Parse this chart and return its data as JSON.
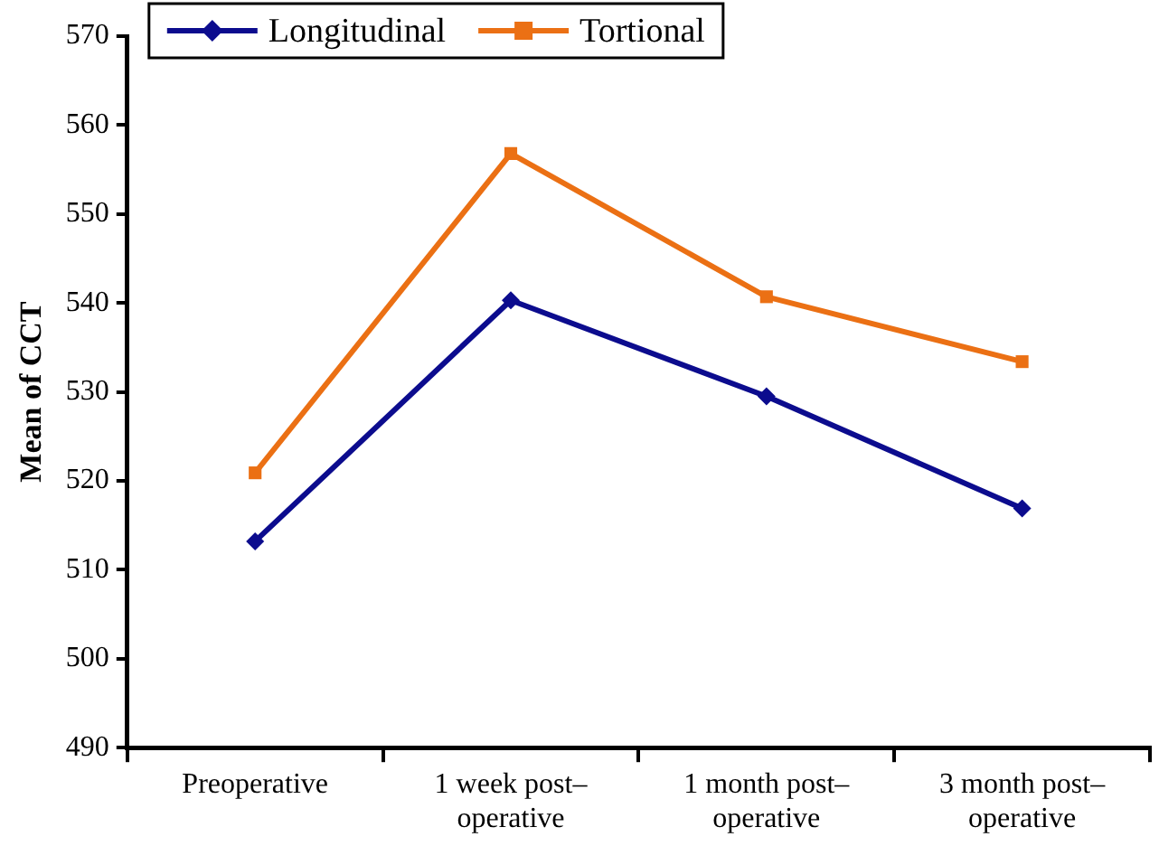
{
  "chart_data": {
    "type": "line",
    "ylabel": "Mean of CCT",
    "categories": [
      "Preoperative",
      "1 week post–operative",
      "1 month post–operative",
      "3 month post–operative"
    ],
    "series": [
      {
        "name": "Longitudinal",
        "color": "#0c0c8e",
        "marker": "diamond",
        "values": [
          513.2,
          540.3,
          529.5,
          516.9
        ]
      },
      {
        "name": "Tortional",
        "color": "#eb7014",
        "marker": "square",
        "values": [
          520.9,
          556.8,
          540.7,
          533.4
        ]
      }
    ],
    "ylim": [
      490,
      570
    ],
    "yticks": [
      490,
      500,
      510,
      520,
      530,
      540,
      550,
      560,
      570
    ],
    "grid": false,
    "legend": "top left",
    "line_style": "solid"
  }
}
